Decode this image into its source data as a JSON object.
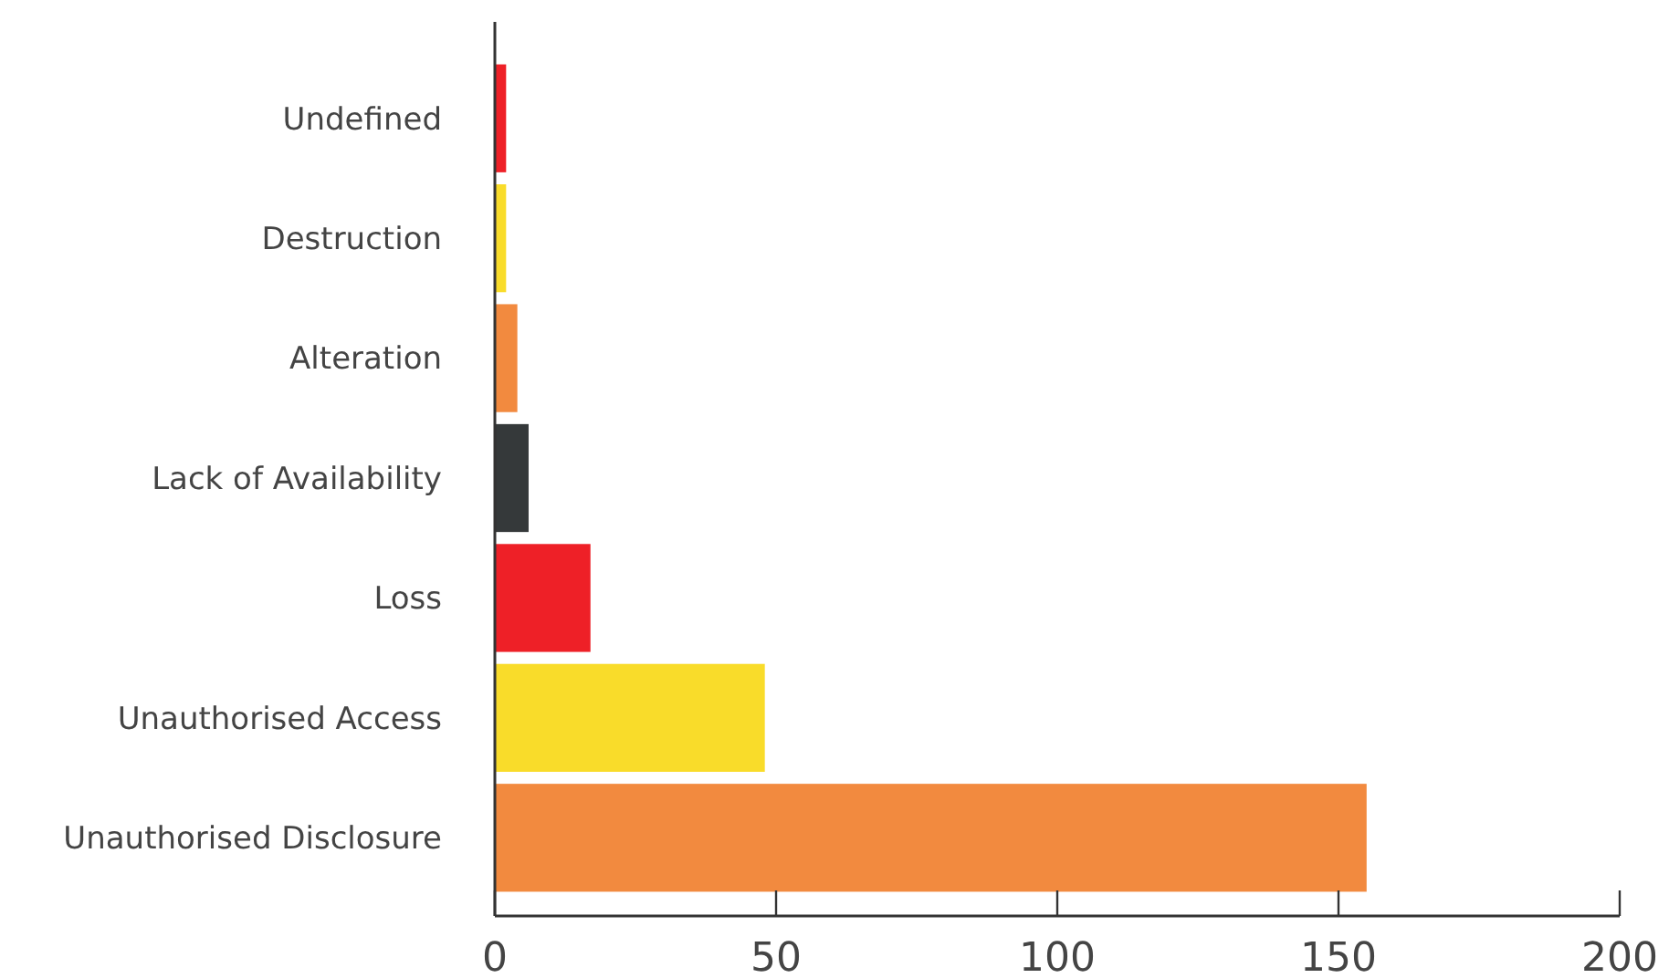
{
  "chart_data": {
    "type": "bar",
    "orientation": "horizontal",
    "categories": [
      "Undefined",
      "Destruction",
      "Alteration",
      "Lack of Availability",
      "Loss",
      "Unauthorised Access",
      "Unauthorised Disclosure"
    ],
    "values": [
      2,
      2,
      4,
      6,
      17,
      48,
      155
    ],
    "colors": [
      "#ee2027",
      "#f9dc2a",
      "#f28a3f",
      "#35393a",
      "#ee2027",
      "#f9dc2a",
      "#f28a3f"
    ],
    "xlim": [
      0,
      200
    ],
    "xticks": [
      0,
      50,
      100,
      150,
      200
    ],
    "grid": false
  }
}
